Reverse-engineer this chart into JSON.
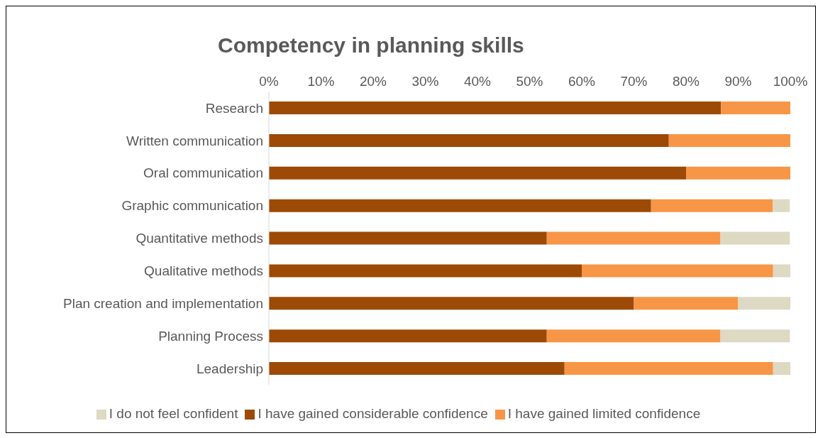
{
  "chart_data": {
    "type": "bar",
    "orientation": "horizontal",
    "stacked": true,
    "title": "Competency in planning skills",
    "categories": [
      "Research",
      "Written communication",
      "Oral communication",
      "Graphic communication",
      "Quantitative methods",
      "Qualitative methods ",
      "Plan creation and implementation",
      "Planning Process",
      "Leadership"
    ],
    "series": [
      {
        "name": "I have gained considerable confidence",
        "color": "#9c4a06",
        "values": [
          86.7,
          76.7,
          80,
          73.3,
          53.3,
          60,
          70,
          53.3,
          56.7
        ]
      },
      {
        "name": "I have gained limited confidence",
        "color": "#f79646",
        "values": [
          13.3,
          23.3,
          20,
          23.3,
          33.3,
          36.7,
          20,
          33.3,
          40
        ]
      },
      {
        "name": "I do not feel confident",
        "color": "#ddd9c3",
        "values": [
          0,
          0,
          0,
          3.3,
          13.3,
          3.3,
          10,
          13.3,
          3.3
        ]
      }
    ],
    "xlim": [
      0,
      100
    ],
    "xticks": [
      {
        "value": 0,
        "label": "0%"
      },
      {
        "value": 10,
        "label": "10%"
      },
      {
        "value": 20,
        "label": "20%"
      },
      {
        "value": 30,
        "label": "30%"
      },
      {
        "value": 40,
        "label": "40%"
      },
      {
        "value": 50,
        "label": "50%"
      },
      {
        "value": 60,
        "label": "60%"
      },
      {
        "value": 70,
        "label": "70%"
      },
      {
        "value": 80,
        "label": "80%"
      },
      {
        "value": 90,
        "label": "90%"
      },
      {
        "value": 100,
        "label": "100%"
      }
    ],
    "grid": false,
    "legend": "bottom"
  }
}
